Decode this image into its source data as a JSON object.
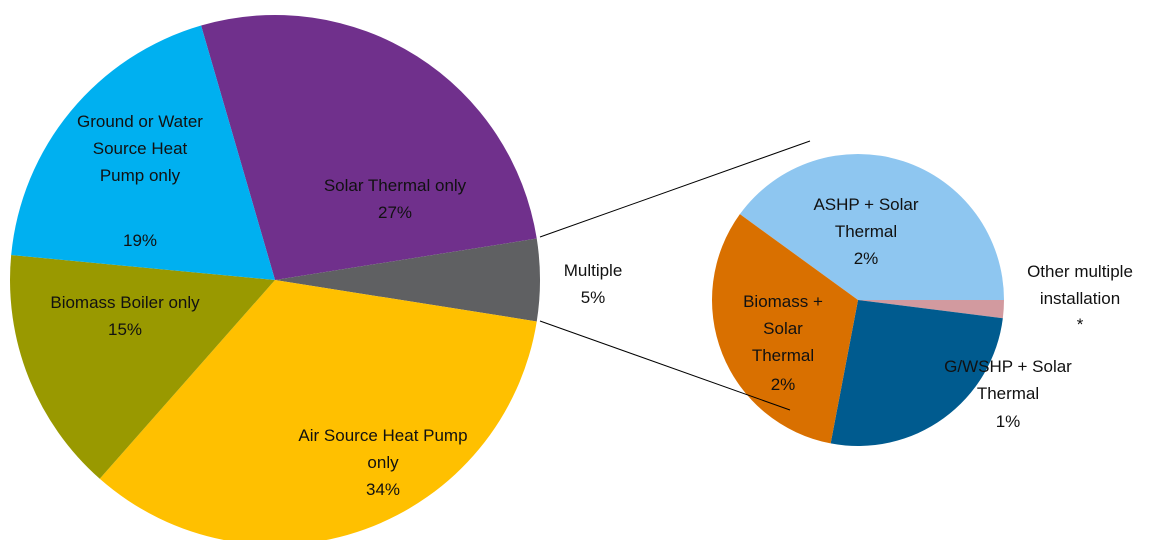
{
  "chart_data": [
    {
      "type": "pie",
      "categories": [
        "Solar Thermal  only",
        "Multiple",
        "Air Source Heat Pump only",
        "Biomass Boiler only",
        "Ground or Water Source Heat Pump only"
      ],
      "values": [
        27,
        5,
        34,
        15,
        19
      ],
      "value_labels": [
        "27%",
        "5%",
        "34%",
        "15%",
        "19%"
      ],
      "colors": [
        "#70308c",
        "#5f6062",
        "#ffc000",
        "#999900",
        "#00b0f0"
      ]
    },
    {
      "type": "pie",
      "categories": [
        "ASHP + Solar Thermal",
        "Other multiple installation",
        "G/WSHP + Solar Thermal",
        "Biomass + Solar Thermal"
      ],
      "values": [
        2.0,
        0.1,
        1.3,
        1.6
      ],
      "value_labels": [
        "2%",
        "*",
        "1%",
        "2%"
      ],
      "colors": [
        "#8ec6f0",
        "#d29a9f",
        "#005b8f",
        "#d97000"
      ]
    }
  ]
}
